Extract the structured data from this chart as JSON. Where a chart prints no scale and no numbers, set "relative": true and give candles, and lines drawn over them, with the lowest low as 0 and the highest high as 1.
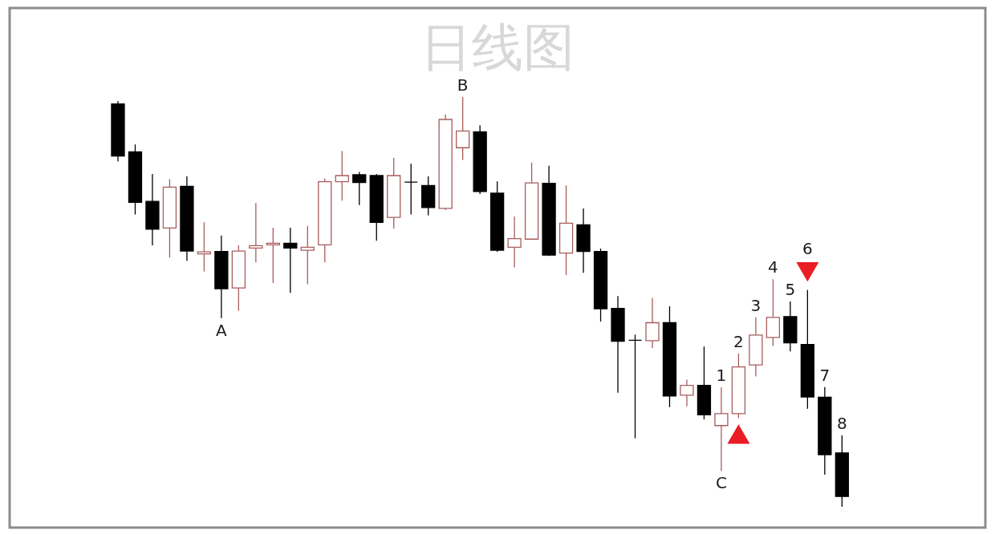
{
  "chart_data": {
    "type": "candlestick",
    "title": "日线图",
    "relative": true,
    "categories": [
      null,
      null,
      null,
      null,
      null,
      null,
      null,
      null,
      null,
      null,
      null,
      null,
      null,
      null,
      null,
      null,
      null,
      null,
      null,
      null,
      null,
      null,
      null,
      null,
      null,
      null,
      null,
      null,
      null,
      null,
      null,
      null,
      null,
      null,
      null,
      null,
      null,
      null,
      null,
      null,
      null,
      null,
      null
    ],
    "ohlc": [
      [
        0.983,
        0.99,
        0.843,
        0.856
      ],
      [
        0.866,
        0.884,
        0.713,
        0.743
      ],
      [
        0.745,
        0.812,
        0.638,
        0.677
      ],
      [
        0.68,
        0.799,
        0.608,
        0.78
      ],
      [
        0.782,
        0.806,
        0.6,
        0.624
      ],
      [
        0.617,
        0.694,
        0.574,
        0.622
      ],
      [
        0.623,
        0.662,
        0.46,
        0.532
      ],
      [
        0.534,
        0.638,
        0.478,
        0.624
      ],
      [
        0.631,
        0.741,
        0.596,
        0.637
      ],
      [
        0.639,
        0.681,
        0.546,
        0.643
      ],
      [
        0.643,
        0.681,
        0.522,
        0.631
      ],
      [
        0.626,
        0.685,
        0.543,
        0.633
      ],
      [
        0.639,
        0.801,
        0.596,
        0.793
      ],
      [
        0.793,
        0.868,
        0.747,
        0.808
      ],
      [
        0.81,
        0.817,
        0.736,
        0.791
      ],
      [
        0.808,
        0.812,
        0.649,
        0.694
      ],
      [
        0.706,
        0.851,
        0.679,
        0.808
      ],
      [
        0.792,
        0.837,
        0.713,
        0.792
      ],
      [
        0.784,
        0.806,
        0.711,
        0.73
      ],
      [
        0.728,
        0.957,
        0.724,
        0.945
      ],
      [
        0.876,
        1.0,
        0.846,
        0.917
      ],
      [
        0.915,
        0.931,
        0.763,
        0.769
      ],
      [
        0.765,
        0.794,
        0.622,
        0.626
      ],
      [
        0.633,
        0.708,
        0.584,
        0.654
      ],
      [
        0.653,
        0.84,
        0.653,
        0.79
      ],
      [
        0.789,
        0.832,
        0.612,
        0.614
      ],
      [
        0.619,
        0.784,
        0.565,
        0.692
      ],
      [
        0.688,
        0.728,
        0.571,
        0.623
      ],
      [
        0.623,
        0.63,
        0.452,
        0.483
      ],
      [
        0.484,
        0.514,
        0.278,
        0.404
      ],
      [
        0.406,
        0.42,
        0.167,
        0.406
      ],
      [
        0.405,
        0.509,
        0.387,
        0.449
      ],
      [
        0.449,
        0.489,
        0.243,
        0.27
      ],
      [
        0.272,
        0.31,
        0.245,
        0.296
      ],
      [
        0.296,
        0.391,
        0.213,
        0.224
      ],
      [
        0.198,
        0.291,
        0.087,
        0.227
      ],
      [
        0.227,
        0.374,
        0.216,
        0.341
      ],
      [
        0.346,
        0.462,
        0.318,
        0.419
      ],
      [
        0.413,
        0.555,
        0.392,
        0.462
      ],
      [
        0.464,
        0.501,
        0.379,
        0.4
      ],
      [
        0.396,
        0.529,
        0.239,
        0.268
      ],
      [
        0.267,
        0.292,
        0.078,
        0.127
      ],
      [
        0.131,
        0.174,
        0.0,
        0.025
      ]
    ],
    "colors": [
      "#000000",
      "#000000",
      "#000000",
      "#a85c5c",
      "#000000",
      "#a85c5c",
      "#000000",
      "#a85c5c",
      "#a85c5c",
      "#a85c5c",
      "#000000",
      "#a85c5c",
      "#a85c5c",
      "#a85c5c",
      "#000000",
      "#000000",
      "#a85c5c",
      "#000000",
      "#000000",
      "#a85c5c",
      "#a85c5c",
      "#000000",
      "#000000",
      "#a85c5c",
      "#a85c5c",
      "#000000",
      "#a85c5c",
      "#000000",
      "#000000",
      "#000000",
      "#000000",
      "#a85c5c",
      "#000000",
      "#a85c5c",
      "#000000",
      "#a85c5c",
      "#a85c5c",
      "#a85c5c",
      "#a85c5c",
      "#000000",
      "#000000",
      "#000000",
      "#000000"
    ],
    "series": [
      {
        "type": "scatter",
        "marker": "triangle",
        "color": "#ea1c24",
        "values": [
          null,
          null,
          null,
          null,
          null,
          null,
          null,
          null,
          null,
          null,
          null,
          null,
          null,
          null,
          null,
          null,
          null,
          null,
          null,
          null,
          null,
          null,
          null,
          null,
          null,
          null,
          null,
          null,
          null,
          null,
          null,
          null,
          null,
          null,
          null,
          null,
          0.177,
          null,
          null,
          null,
          null,
          null,
          null
        ]
      },
      {
        "type": "scatter",
        "marker": "triangle-down",
        "color": "#ea1c24",
        "values": [
          null,
          null,
          null,
          null,
          null,
          null,
          null,
          null,
          null,
          null,
          null,
          null,
          null,
          null,
          null,
          null,
          null,
          null,
          null,
          null,
          null,
          null,
          null,
          null,
          null,
          null,
          null,
          null,
          null,
          null,
          null,
          null,
          null,
          null,
          null,
          null,
          null,
          null,
          null,
          null,
          0.573,
          null,
          null
        ]
      }
    ],
    "annotations": [
      {
        "text": "A",
        "y": 0.46
      },
      {
        "text": "B",
        "y": 1.0
      },
      {
        "text": "C",
        "y": 0.087
      },
      {
        "text": "1",
        "y": 0.291
      },
      {
        "text": "2",
        "y": 0.374
      },
      {
        "text": "3",
        "y": 0.462
      },
      {
        "text": "4",
        "y": 0.555
      },
      {
        "text": "5",
        "y": 0.501
      },
      {
        "text": "6",
        "y": 0.529
      },
      {
        "text": "7",
        "y": 0.292
      },
      {
        "text": "8",
        "y": 0.174
      }
    ]
  }
}
